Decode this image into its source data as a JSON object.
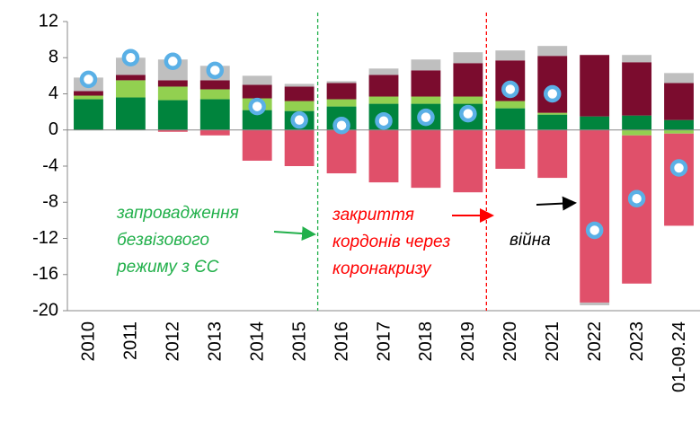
{
  "chart_data": {
    "type": "bar",
    "stacked": true,
    "categories": [
      "2010",
      "2011",
      "2012",
      "2013",
      "2014",
      "2015",
      "2016",
      "2017",
      "2018",
      "2019",
      "2020",
      "2021",
      "2022",
      "2023",
      "01-09.24"
    ],
    "series": [
      {
        "color": "#00843d",
        "values": [
          3.4,
          3.6,
          3.3,
          3.4,
          2.2,
          2.1,
          2.6,
          2.9,
          2.9,
          2.9,
          2.4,
          1.7,
          1.5,
          1.6,
          1.1
        ]
      },
      {
        "color": "#92d050",
        "values": [
          0.4,
          1.9,
          1.5,
          1.1,
          1.3,
          1.1,
          0.8,
          0.8,
          0.8,
          0.8,
          0.8,
          0.2,
          0,
          -0.6,
          -0.4
        ]
      },
      {
        "color": "#7b0c2e",
        "values": [
          0.5,
          0.6,
          0.7,
          1.0,
          1.5,
          1.6,
          1.8,
          2.4,
          2.9,
          3.7,
          4.5,
          6.3,
          6.8,
          5.9,
          4.1
        ]
      },
      {
        "color": "#e0506a",
        "values": [
          0,
          0,
          -0.2,
          -0.6,
          -3.4,
          -4.0,
          -4.8,
          -5.8,
          -6.4,
          -6.9,
          -4.3,
          -5.3,
          -19.1,
          -16.4,
          -10.2
        ]
      },
      {
        "color": "#bfbfbf",
        "values": [
          1.5,
          1.9,
          2.3,
          1.6,
          1.0,
          0.3,
          0.2,
          0.7,
          1.2,
          1.2,
          1.1,
          1.1,
          -0.3,
          0.8,
          1.1
        ]
      }
    ],
    "dots": {
      "color": "#5ab0e6",
      "values": [
        5.6,
        8.0,
        7.6,
        6.6,
        2.6,
        1.1,
        0.5,
        1.0,
        1.4,
        1.8,
        4.5,
        4.0,
        -11.1,
        -7.6,
        -4.2
      ]
    },
    "ylim": [
      -20,
      12
    ],
    "yticks": [
      -20,
      -16,
      -12,
      -8,
      -4,
      0,
      4,
      8,
      12
    ],
    "annotations": [
      {
        "color": "#22b04b",
        "lines": [
          "запровадження",
          "безвізового",
          "режиму з ЄС"
        ]
      },
      {
        "color": "#ff0000",
        "lines": [
          "закриття",
          "кордонів через",
          "коронакризу"
        ]
      },
      {
        "color": "#000000",
        "lines": [
          "війна"
        ]
      }
    ]
  }
}
